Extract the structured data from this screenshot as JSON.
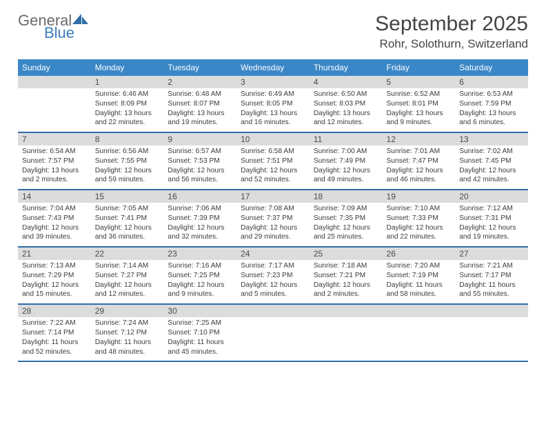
{
  "logo": {
    "text_general": "General",
    "text_blue": "Blue"
  },
  "brand_colors": {
    "header_bg": "#3a87c7",
    "divider": "#2f6ea8",
    "daynum_bg": "#dcdcdc",
    "logo_blue": "#3a7ebf",
    "logo_gray": "#6b6b6b"
  },
  "title": {
    "month": "September 2025",
    "location": "Rohr, Solothurn, Switzerland"
  },
  "weekdays": [
    "Sunday",
    "Monday",
    "Tuesday",
    "Wednesday",
    "Thursday",
    "Friday",
    "Saturday"
  ],
  "weeks": [
    {
      "days": [
        {
          "num": "",
          "sunrise": "",
          "sunset": "",
          "daylight": ""
        },
        {
          "num": "1",
          "sunrise": "Sunrise: 6:46 AM",
          "sunset": "Sunset: 8:09 PM",
          "daylight": "Daylight: 13 hours and 22 minutes."
        },
        {
          "num": "2",
          "sunrise": "Sunrise: 6:48 AM",
          "sunset": "Sunset: 8:07 PM",
          "daylight": "Daylight: 13 hours and 19 minutes."
        },
        {
          "num": "3",
          "sunrise": "Sunrise: 6:49 AM",
          "sunset": "Sunset: 8:05 PM",
          "daylight": "Daylight: 13 hours and 16 minutes."
        },
        {
          "num": "4",
          "sunrise": "Sunrise: 6:50 AM",
          "sunset": "Sunset: 8:03 PM",
          "daylight": "Daylight: 13 hours and 12 minutes."
        },
        {
          "num": "5",
          "sunrise": "Sunrise: 6:52 AM",
          "sunset": "Sunset: 8:01 PM",
          "daylight": "Daylight: 13 hours and 9 minutes."
        },
        {
          "num": "6",
          "sunrise": "Sunrise: 6:53 AM",
          "sunset": "Sunset: 7:59 PM",
          "daylight": "Daylight: 13 hours and 6 minutes."
        }
      ]
    },
    {
      "days": [
        {
          "num": "7",
          "sunrise": "Sunrise: 6:54 AM",
          "sunset": "Sunset: 7:57 PM",
          "daylight": "Daylight: 13 hours and 2 minutes."
        },
        {
          "num": "8",
          "sunrise": "Sunrise: 6:56 AM",
          "sunset": "Sunset: 7:55 PM",
          "daylight": "Daylight: 12 hours and 59 minutes."
        },
        {
          "num": "9",
          "sunrise": "Sunrise: 6:57 AM",
          "sunset": "Sunset: 7:53 PM",
          "daylight": "Daylight: 12 hours and 56 minutes."
        },
        {
          "num": "10",
          "sunrise": "Sunrise: 6:58 AM",
          "sunset": "Sunset: 7:51 PM",
          "daylight": "Daylight: 12 hours and 52 minutes."
        },
        {
          "num": "11",
          "sunrise": "Sunrise: 7:00 AM",
          "sunset": "Sunset: 7:49 PM",
          "daylight": "Daylight: 12 hours and 49 minutes."
        },
        {
          "num": "12",
          "sunrise": "Sunrise: 7:01 AM",
          "sunset": "Sunset: 7:47 PM",
          "daylight": "Daylight: 12 hours and 46 minutes."
        },
        {
          "num": "13",
          "sunrise": "Sunrise: 7:02 AM",
          "sunset": "Sunset: 7:45 PM",
          "daylight": "Daylight: 12 hours and 42 minutes."
        }
      ]
    },
    {
      "days": [
        {
          "num": "14",
          "sunrise": "Sunrise: 7:04 AM",
          "sunset": "Sunset: 7:43 PM",
          "daylight": "Daylight: 12 hours and 39 minutes."
        },
        {
          "num": "15",
          "sunrise": "Sunrise: 7:05 AM",
          "sunset": "Sunset: 7:41 PM",
          "daylight": "Daylight: 12 hours and 36 minutes."
        },
        {
          "num": "16",
          "sunrise": "Sunrise: 7:06 AM",
          "sunset": "Sunset: 7:39 PM",
          "daylight": "Daylight: 12 hours and 32 minutes."
        },
        {
          "num": "17",
          "sunrise": "Sunrise: 7:08 AM",
          "sunset": "Sunset: 7:37 PM",
          "daylight": "Daylight: 12 hours and 29 minutes."
        },
        {
          "num": "18",
          "sunrise": "Sunrise: 7:09 AM",
          "sunset": "Sunset: 7:35 PM",
          "daylight": "Daylight: 12 hours and 25 minutes."
        },
        {
          "num": "19",
          "sunrise": "Sunrise: 7:10 AM",
          "sunset": "Sunset: 7:33 PM",
          "daylight": "Daylight: 12 hours and 22 minutes."
        },
        {
          "num": "20",
          "sunrise": "Sunrise: 7:12 AM",
          "sunset": "Sunset: 7:31 PM",
          "daylight": "Daylight: 12 hours and 19 minutes."
        }
      ]
    },
    {
      "days": [
        {
          "num": "21",
          "sunrise": "Sunrise: 7:13 AM",
          "sunset": "Sunset: 7:29 PM",
          "daylight": "Daylight: 12 hours and 15 minutes."
        },
        {
          "num": "22",
          "sunrise": "Sunrise: 7:14 AM",
          "sunset": "Sunset: 7:27 PM",
          "daylight": "Daylight: 12 hours and 12 minutes."
        },
        {
          "num": "23",
          "sunrise": "Sunrise: 7:16 AM",
          "sunset": "Sunset: 7:25 PM",
          "daylight": "Daylight: 12 hours and 9 minutes."
        },
        {
          "num": "24",
          "sunrise": "Sunrise: 7:17 AM",
          "sunset": "Sunset: 7:23 PM",
          "daylight": "Daylight: 12 hours and 5 minutes."
        },
        {
          "num": "25",
          "sunrise": "Sunrise: 7:18 AM",
          "sunset": "Sunset: 7:21 PM",
          "daylight": "Daylight: 12 hours and 2 minutes."
        },
        {
          "num": "26",
          "sunrise": "Sunrise: 7:20 AM",
          "sunset": "Sunset: 7:19 PM",
          "daylight": "Daylight: 11 hours and 58 minutes."
        },
        {
          "num": "27",
          "sunrise": "Sunrise: 7:21 AM",
          "sunset": "Sunset: 7:17 PM",
          "daylight": "Daylight: 11 hours and 55 minutes."
        }
      ]
    },
    {
      "days": [
        {
          "num": "28",
          "sunrise": "Sunrise: 7:22 AM",
          "sunset": "Sunset: 7:14 PM",
          "daylight": "Daylight: 11 hours and 52 minutes."
        },
        {
          "num": "29",
          "sunrise": "Sunrise: 7:24 AM",
          "sunset": "Sunset: 7:12 PM",
          "daylight": "Daylight: 11 hours and 48 minutes."
        },
        {
          "num": "30",
          "sunrise": "Sunrise: 7:25 AM",
          "sunset": "Sunset: 7:10 PM",
          "daylight": "Daylight: 11 hours and 45 minutes."
        },
        {
          "num": "",
          "sunrise": "",
          "sunset": "",
          "daylight": ""
        },
        {
          "num": "",
          "sunrise": "",
          "sunset": "",
          "daylight": ""
        },
        {
          "num": "",
          "sunrise": "",
          "sunset": "",
          "daylight": ""
        },
        {
          "num": "",
          "sunrise": "",
          "sunset": "",
          "daylight": ""
        }
      ]
    }
  ]
}
